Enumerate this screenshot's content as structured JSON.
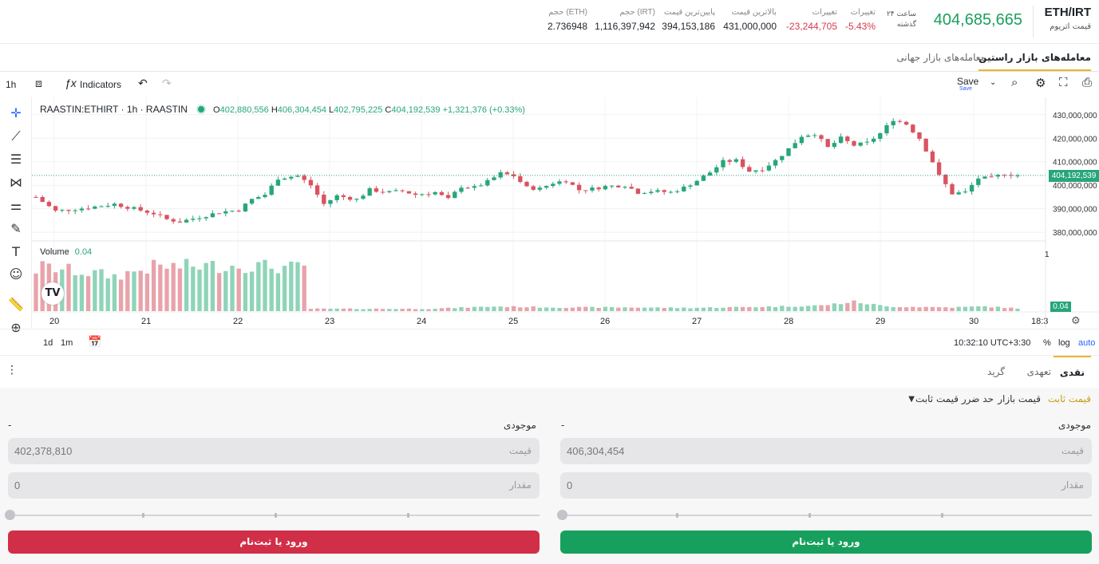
{
  "header": {
    "pair": "ETH/IRT",
    "pair_sub": "قیمت اتریوم",
    "last_price": "404,685,665",
    "period": [
      "۲۴ ساعت",
      "گذشته"
    ],
    "stats": [
      {
        "label": "تغییرات",
        "value": "-5.43%",
        "color": "red"
      },
      {
        "label": "تغییرات",
        "value": "-23,244,705",
        "color": "red"
      },
      {
        "label": "بالاترین قیمت",
        "value": "431,000,000"
      },
      {
        "label": "پایین‌ترین قیمت",
        "value": "394,153,186"
      },
      {
        "label": "حجم (IRT)",
        "value": "1,116,397,942"
      },
      {
        "label": "حجم (ETH)",
        "value": "2.736948"
      }
    ]
  },
  "market_tabs": [
    "معامله‌های بازار راستین",
    "معامله‌های بازار جهانی"
  ],
  "toolbar": {
    "interval": "1h",
    "indicators": "Indicators",
    "save": "Save",
    "save_sub": "Save"
  },
  "legend": {
    "symbol": "RAASTIN:ETHIRT · 1h · RAASTIN",
    "o_label": "O",
    "o": "402,880,556",
    "h_label": "H",
    "h": "406,304,454",
    "l_label": "L",
    "l": "402,795,225",
    "c_label": "C",
    "c": "404,192,539",
    "change": "+1,321,376 (+0.33%)",
    "volume_label": "Volume",
    "volume_value": "0.04"
  },
  "chart_data": {
    "type": "candlestick",
    "price_axis": [
      "430,000,000",
      "420,000,000",
      "410,000,000",
      "400,000,000",
      "390,000,000",
      "380,000,000"
    ],
    "price_ticks": [
      430000000,
      420000000,
      410000000,
      400000000,
      390000000,
      380000000
    ],
    "ylim": [
      377000000,
      434000000
    ],
    "current_price_label": "404,192,539",
    "current_price": 404192539,
    "volume_axis_label": "1",
    "volume_current_label": "0.04",
    "x_ticks": [
      "20",
      "21",
      "22",
      "23",
      "24",
      "25",
      "26",
      "27",
      "28",
      "29",
      "30",
      "18:3"
    ],
    "close_path": [
      [
        0,
        395000000
      ],
      [
        3,
        389000000
      ],
      [
        8,
        390500000
      ],
      [
        12,
        392000000
      ],
      [
        15,
        390000000
      ],
      [
        18,
        388000000
      ],
      [
        20,
        385500000
      ],
      [
        22,
        384500000
      ],
      [
        25,
        386500000
      ],
      [
        28,
        388500000
      ],
      [
        31,
        389500000
      ],
      [
        33,
        394000000
      ],
      [
        35,
        396000000
      ],
      [
        37,
        403000000
      ],
      [
        40,
        404000000
      ],
      [
        42,
        400000000
      ],
      [
        44,
        392000000
      ],
      [
        46,
        395500000
      ],
      [
        49,
        394000000
      ],
      [
        51,
        398000000
      ],
      [
        54,
        397000000
      ],
      [
        56,
        397500000
      ],
      [
        58,
        396000000
      ],
      [
        61,
        397000000
      ],
      [
        63,
        394000000
      ],
      [
        65,
        399500000
      ],
      [
        67,
        399000000
      ],
      [
        69,
        401500000
      ],
      [
        71,
        405000000
      ],
      [
        73,
        404000000
      ],
      [
        75,
        399000000
      ],
      [
        77,
        398500000
      ],
      [
        79,
        401000000
      ],
      [
        81,
        402000000
      ],
      [
        83,
        398000000
      ],
      [
        85,
        398500000
      ],
      [
        87,
        399500000
      ],
      [
        90,
        400000000
      ],
      [
        92,
        397000000
      ],
      [
        94,
        397500000
      ],
      [
        97,
        397000000
      ],
      [
        99,
        399000000
      ],
      [
        101,
        402000000
      ],
      [
        103,
        405500000
      ],
      [
        105,
        410000000
      ],
      [
        107,
        410500000
      ],
      [
        109,
        406000000
      ],
      [
        111,
        407000000
      ],
      [
        113,
        410500000
      ],
      [
        115,
        415500000
      ],
      [
        117,
        421000000
      ],
      [
        119,
        422000000
      ],
      [
        121,
        416000000
      ],
      [
        123,
        420000000
      ],
      [
        125,
        417000000
      ],
      [
        127,
        418000000
      ],
      [
        129,
        422000000
      ],
      [
        131,
        428000000
      ],
      [
        133,
        426000000
      ],
      [
        135,
        420000000
      ],
      [
        137,
        410000000
      ],
      [
        138,
        404000000
      ],
      [
        140,
        396500000
      ],
      [
        142,
        397000000
      ],
      [
        144,
        403000000
      ],
      [
        146,
        403000000
      ],
      [
        148,
        405000000
      ],
      [
        150,
        404192539
      ]
    ],
    "volume_profile": [
      [
        0,
        0.88
      ],
      [
        1,
        0.95
      ],
      [
        12,
        0.75
      ],
      [
        18,
        0.95
      ],
      [
        32,
        0.98
      ],
      [
        41,
        0.92
      ],
      [
        42,
        0.05
      ],
      [
        60,
        0.05
      ],
      [
        70,
        0.1
      ],
      [
        80,
        0.08
      ],
      [
        90,
        0.08
      ],
      [
        100,
        0.07
      ],
      [
        110,
        0.09
      ],
      [
        120,
        0.12
      ],
      [
        125,
        0.2
      ],
      [
        130,
        0.1
      ],
      [
        140,
        0.08
      ],
      [
        145,
        0.1
      ],
      [
        150,
        0.06
      ]
    ]
  },
  "chart_bottom": {
    "ranges": [
      "1d",
      "1m"
    ],
    "time": "10:32:10 UTC+3:30",
    "percent": "%",
    "log": "log",
    "auto": "auto"
  },
  "order_tabs": [
    "نقدی",
    "تعهدی",
    "گرید"
  ],
  "order_types": {
    "limit": "قیمت ثابت",
    "market": "قیمت بازار",
    "stop": "حد ضرر قیمت ثابت"
  },
  "buy": {
    "balance_label": "موجودی",
    "balance_value": "-",
    "price_value": "406,304,454",
    "price_ph": "قیمت",
    "amount_value": "0",
    "amount_ph": "مقدار",
    "button": "ورود یا ثبت‌نام",
    "color": "#17a05d"
  },
  "sell": {
    "balance_label": "موجودی",
    "balance_value": "-",
    "price_value": "402,378,810",
    "price_ph": "قیمت",
    "amount_value": "0",
    "amount_ph": "مقدار",
    "button": "ورود یا ثبت‌نام",
    "color": "#d12e48"
  },
  "colors": {
    "up": "#26a67a",
    "down": "#d9535f",
    "accent": "#e9b52c"
  }
}
